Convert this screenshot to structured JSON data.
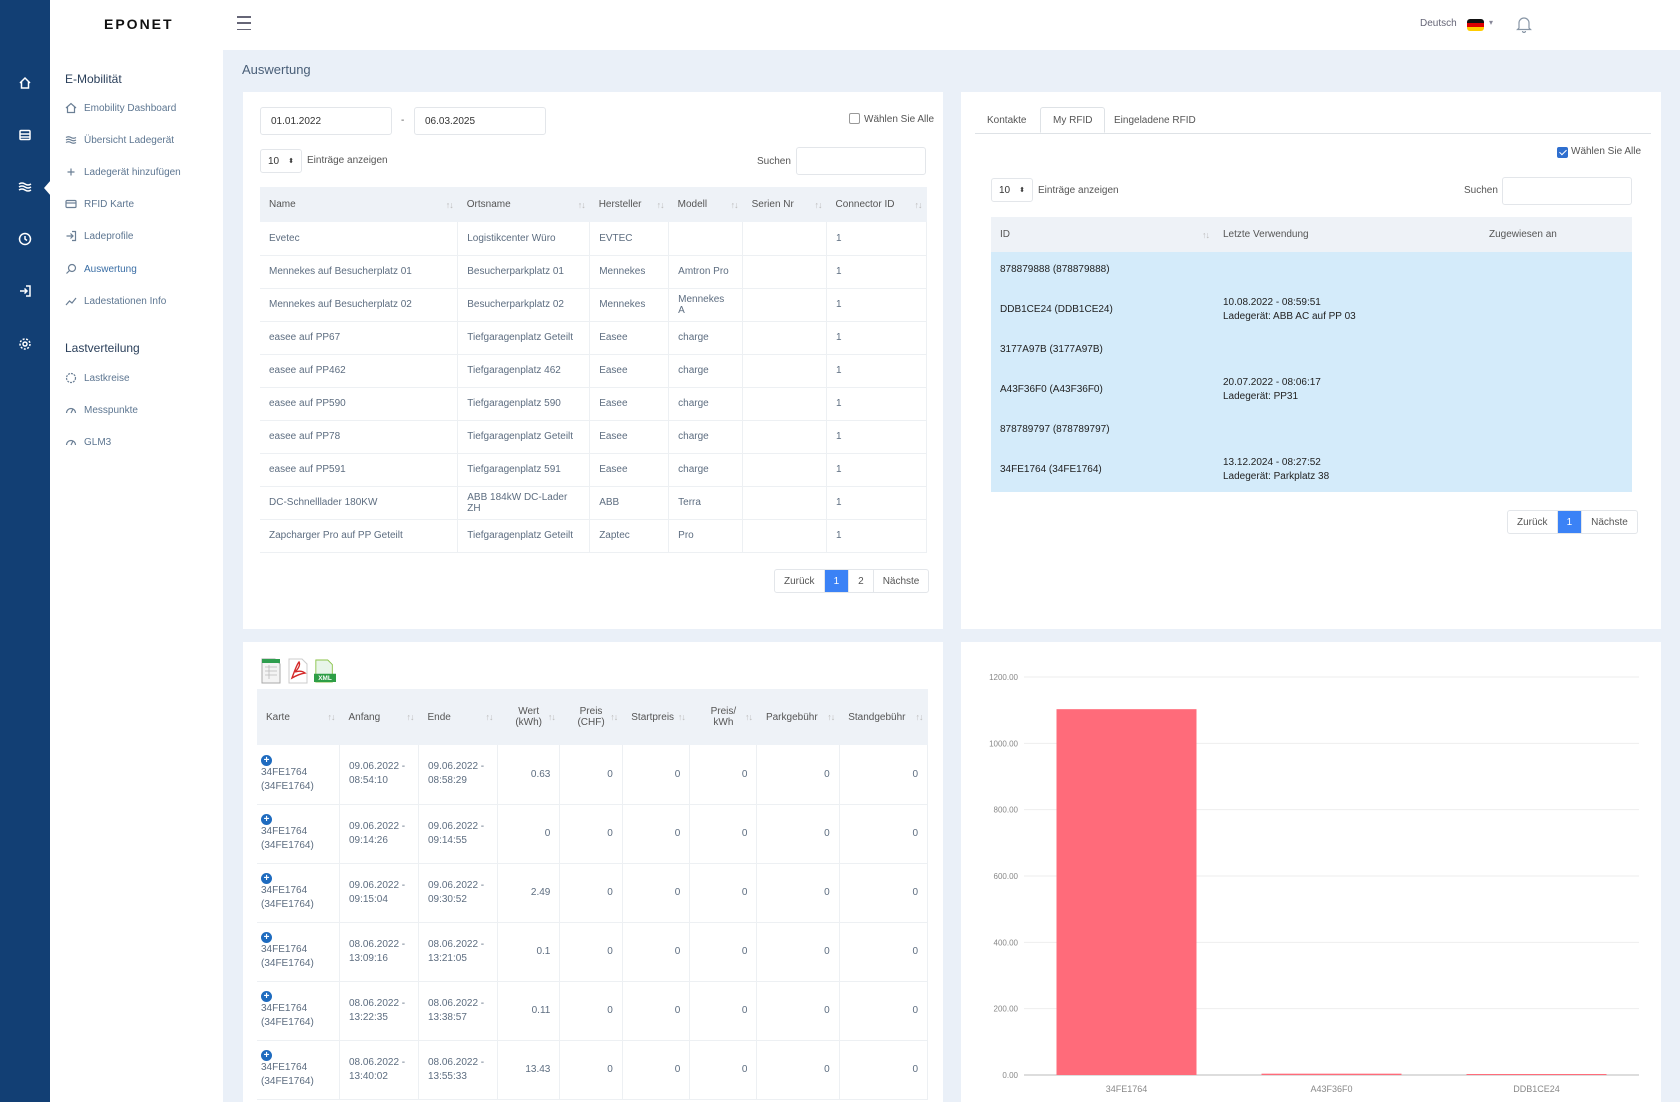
{
  "app": {
    "logo": "EPONET",
    "language": "Deutsch",
    "page_title": "Auswertung"
  },
  "sidebar": {
    "section1": "E-Mobilität",
    "items1": [
      {
        "label": "Emobility Dashboard",
        "icon": "home-icon"
      },
      {
        "label": "Übersicht Ladegerät",
        "icon": "waves-icon"
      },
      {
        "label": "Ladegerät hinzufügen",
        "icon": "plus-icon"
      },
      {
        "label": "RFID Karte",
        "icon": "card-icon"
      },
      {
        "label": "Ladeprofile",
        "icon": "login-icon"
      },
      {
        "label": "Auswertung",
        "icon": "search-icon"
      },
      {
        "label": "Ladestationen Info",
        "icon": "trend-icon"
      }
    ],
    "section2": "Lastverteilung",
    "items2": [
      {
        "label": "Lastkreise",
        "icon": "circle-icon"
      },
      {
        "label": "Messpunkte",
        "icon": "gauge-icon"
      },
      {
        "label": "GLM3",
        "icon": "gauge-icon"
      }
    ]
  },
  "chargers_panel": {
    "date_from": "01.01.2022",
    "date_sep": "-",
    "date_to": "06.03.2025",
    "select_all": "Wählen Sie Alle",
    "page_size": "10",
    "entries_label": "Einträge anzeigen",
    "search_label": "Suchen",
    "columns": [
      "Name",
      "Ortsname",
      "Hersteller",
      "Modell",
      "Serien Nr",
      "Connector ID"
    ],
    "rows": [
      [
        "Evetec",
        "Logistikcenter Würo",
        "EVTEC",
        "",
        "",
        "1"
      ],
      [
        "Mennekes auf Besucherplatz 01",
        "Besucherparkplatz 01",
        "Mennekes",
        "Amtron Pro",
        "",
        "1"
      ],
      [
        "Mennekes auf Besucherplatz 02",
        "Besucherparkplatz 02",
        "Mennekes",
        "Mennekes A",
        "",
        "1"
      ],
      [
        "easee auf PP67",
        "Tiefgaragenplatz Geteilt",
        "Easee",
        "charge",
        "",
        "1"
      ],
      [
        "easee auf PP462",
        "Tiefgaragenplatz 462",
        "Easee",
        "charge",
        "",
        "1"
      ],
      [
        "easee auf PP590",
        "Tiefgaragenplatz 590",
        "Easee",
        "charge",
        "",
        "1"
      ],
      [
        "easee auf PP78",
        "Tiefgaragenplatz Geteilt",
        "Easee",
        "charge",
        "",
        "1"
      ],
      [
        "easee auf PP591",
        "Tiefgaragenplatz 591",
        "Easee",
        "charge",
        "",
        "1"
      ],
      [
        "DC-Schnelllader 180KW",
        "ABB 184kW DC-Lader ZH",
        "ABB",
        "Terra",
        "",
        "1"
      ],
      [
        "Zapcharger Pro auf PP Geteilt",
        "Tiefgaragenplatz Geteilt",
        "Zaptec",
        "Pro",
        "",
        "1"
      ]
    ],
    "pager": {
      "prev": "Zurück",
      "pages": [
        "1",
        "2"
      ],
      "next": "Nächste"
    }
  },
  "rfid_panel": {
    "tabs": [
      "Kontakte",
      "My RFID",
      "Eingeladene RFID"
    ],
    "select_all": "Wählen Sie Alle",
    "page_size": "10",
    "entries_label": "Einträge anzeigen",
    "search_label": "Suchen",
    "columns": [
      "ID",
      "Letzte Verwendung",
      "Zugewiesen an"
    ],
    "rows": [
      {
        "id": "878879888 (878879888)",
        "last": "",
        "charger": "",
        "assigned": ""
      },
      {
        "id": "DDB1CE24 (DDB1CE24)",
        "last": "10.08.2022 - 08:59:51",
        "charger": "Ladegerät: ABB AC auf PP 03",
        "assigned": ""
      },
      {
        "id": "3177A97B (3177A97B)",
        "last": "",
        "charger": "",
        "assigned": ""
      },
      {
        "id": "A43F36F0 (A43F36F0)",
        "last": "20.07.2022 - 08:06:17",
        "charger": "Ladegerät: PP31",
        "assigned": ""
      },
      {
        "id": "878789797 (878789797)",
        "last": "",
        "charger": "",
        "assigned": ""
      },
      {
        "id": "34FE1764 (34FE1764)",
        "last": "13.12.2024 - 08:27:52",
        "charger": "Ladegerät: Parkplatz 38",
        "assigned": ""
      }
    ],
    "pager": {
      "prev": "Zurück",
      "pages": [
        "1"
      ],
      "next": "Nächste"
    }
  },
  "sessions_panel": {
    "export_icons": [
      "excel-icon",
      "pdf-icon",
      "xml-icon"
    ],
    "xml_label": "XML",
    "columns": [
      "Karte",
      "Anfang",
      "Ende",
      "Wert (kWh)",
      "Preis (CHF)",
      "Startpreis",
      "Preis/ kWh",
      "Parkgebühr",
      "Standgebühr"
    ],
    "rows": [
      {
        "card": "34FE1764 (34FE1764)",
        "start": "09.06.2022 - 08:54:10",
        "end": "09.06.2022 - 08:58:29",
        "kwh": "0.63",
        "price": "0",
        "startprice": "0",
        "perkwh": "0",
        "park": "0",
        "stand": "0"
      },
      {
        "card": "34FE1764 (34FE1764)",
        "start": "09.06.2022 - 09:14:26",
        "end": "09.06.2022 - 09:14:55",
        "kwh": "0",
        "price": "0",
        "startprice": "0",
        "perkwh": "0",
        "park": "0",
        "stand": "0"
      },
      {
        "card": "34FE1764 (34FE1764)",
        "start": "09.06.2022 - 09:15:04",
        "end": "09.06.2022 - 09:30:52",
        "kwh": "2.49",
        "price": "0",
        "startprice": "0",
        "perkwh": "0",
        "park": "0",
        "stand": "0"
      },
      {
        "card": "34FE1764 (34FE1764)",
        "start": "08.06.2022 - 13:09:16",
        "end": "08.06.2022 - 13:21:05",
        "kwh": "0.1",
        "price": "0",
        "startprice": "0",
        "perkwh": "0",
        "park": "0",
        "stand": "0"
      },
      {
        "card": "34FE1764 (34FE1764)",
        "start": "08.06.2022 - 13:22:35",
        "end": "08.06.2022 - 13:38:57",
        "kwh": "0.11",
        "price": "0",
        "startprice": "0",
        "perkwh": "0",
        "park": "0",
        "stand": "0"
      },
      {
        "card": "34FE1764 (34FE1764)",
        "start": "08.06.2022 - 13:40:02",
        "end": "08.06.2022 - 13:55:33",
        "kwh": "13.43",
        "price": "0",
        "startprice": "0",
        "perkwh": "0",
        "park": "0",
        "stand": "0"
      }
    ]
  },
  "chart_data": {
    "type": "bar",
    "categories": [
      "34FE1764",
      "A43F36F0",
      "DDB1CE24"
    ],
    "values": [
      1103,
      4,
      3
    ],
    "yticks": [
      "0.00",
      "200.00",
      "400.00",
      "600.00",
      "800.00",
      "1000.00",
      "1200.00"
    ],
    "ylim": [
      0,
      1200
    ],
    "bar_color": "#ff6b7a",
    "grid": true
  },
  "colors": {
    "rail": "#123f74",
    "accent": "#3b82f6",
    "row_highlight": "#d4ebfa"
  }
}
